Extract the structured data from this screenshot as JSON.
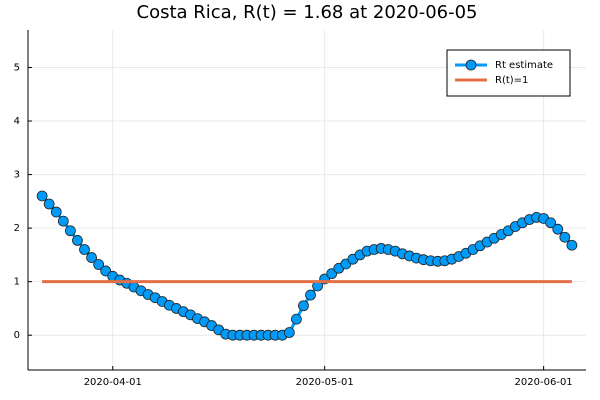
{
  "chart_data": {
    "type": "line",
    "title": "Costa Rica, R(t) = 1.68 at 2020-06-05",
    "series": [
      {
        "name": "Rt estimate",
        "color": "#009af9",
        "marker": true,
        "x": [
          "2020-03-22",
          "2020-03-23",
          "2020-03-24",
          "2020-03-25",
          "2020-03-26",
          "2020-03-27",
          "2020-03-28",
          "2020-03-29",
          "2020-03-30",
          "2020-03-31",
          "2020-04-01",
          "2020-04-02",
          "2020-04-03",
          "2020-04-04",
          "2020-04-05",
          "2020-04-06",
          "2020-04-07",
          "2020-04-08",
          "2020-04-09",
          "2020-04-10",
          "2020-04-11",
          "2020-04-12",
          "2020-04-13",
          "2020-04-14",
          "2020-04-15",
          "2020-04-16",
          "2020-04-17",
          "2020-04-18",
          "2020-04-19",
          "2020-04-20",
          "2020-04-21",
          "2020-04-22",
          "2020-04-23",
          "2020-04-24",
          "2020-04-25",
          "2020-04-26",
          "2020-04-27",
          "2020-04-28",
          "2020-04-29",
          "2020-04-30",
          "2020-05-01",
          "2020-05-02",
          "2020-05-03",
          "2020-05-04",
          "2020-05-05",
          "2020-05-06",
          "2020-05-07",
          "2020-05-08",
          "2020-05-09",
          "2020-05-10",
          "2020-05-11",
          "2020-05-12",
          "2020-05-13",
          "2020-05-14",
          "2020-05-15",
          "2020-05-16",
          "2020-05-17",
          "2020-05-18",
          "2020-05-19",
          "2020-05-20",
          "2020-05-21",
          "2020-05-22",
          "2020-05-23",
          "2020-05-24",
          "2020-05-25",
          "2020-05-26",
          "2020-05-27",
          "2020-05-28",
          "2020-05-29",
          "2020-05-30",
          "2020-05-31",
          "2020-06-01",
          "2020-06-02",
          "2020-06-03",
          "2020-06-04",
          "2020-06-05"
        ],
        "values": [
          2.6,
          2.45,
          2.3,
          2.13,
          1.95,
          1.77,
          1.6,
          1.45,
          1.32,
          1.2,
          1.1,
          1.03,
          0.97,
          0.9,
          0.83,
          0.76,
          0.7,
          0.63,
          0.56,
          0.5,
          0.44,
          0.38,
          0.31,
          0.25,
          0.18,
          0.1,
          0.02,
          0,
          0,
          0,
          0,
          0,
          0,
          0,
          0,
          0.05,
          0.3,
          0.55,
          0.75,
          0.92,
          1.05,
          1.15,
          1.25,
          1.33,
          1.42,
          1.5,
          1.57,
          1.6,
          1.62,
          1.6,
          1.57,
          1.52,
          1.48,
          1.44,
          1.41,
          1.39,
          1.38,
          1.39,
          1.42,
          1.47,
          1.53,
          1.6,
          1.67,
          1.74,
          1.81,
          1.88,
          1.95,
          2.03,
          2.1,
          2.16,
          2.2,
          2.18,
          2.1,
          1.98,
          1.83,
          1.68
        ]
      },
      {
        "name": "R(t)=1",
        "color": "#e26f46",
        "marker": false,
        "x": [
          "2020-03-22",
          "2020-06-05"
        ],
        "values": [
          1,
          1
        ]
      }
    ],
    "xlim": [
      "2020-03-20",
      "2020-06-07"
    ],
    "xticks": [
      "2020-04-01",
      "2020-05-01",
      "2020-06-01"
    ],
    "ylim": [
      -0.65,
      5.7
    ],
    "yticks": [
      0,
      1,
      2,
      3,
      4,
      5
    ],
    "grid": true,
    "legend": "top-right"
  }
}
